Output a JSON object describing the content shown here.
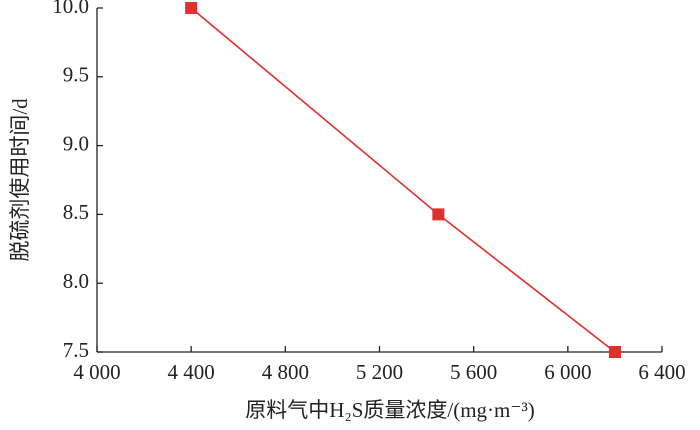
{
  "chart_data": {
    "type": "line",
    "x_label": "原料气中H₂S质量浓度/(mg·m⁻³)",
    "y_label": "脱硫剂使用时间/d",
    "series": [
      {
        "color": "#e0302c",
        "x": [
          4400,
          5450,
          6200
        ],
        "values": [
          10.0,
          8.5,
          7.5
        ]
      }
    ],
    "xlim": [
      4000,
      6400
    ],
    "xticks": [
      {
        "value": 4000,
        "label": "4 000"
      },
      {
        "value": 4400,
        "label": "4 400"
      },
      {
        "value": 4800,
        "label": "4 800"
      },
      {
        "value": 5200,
        "label": "5 200"
      },
      {
        "value": 5600,
        "label": "5 600"
      },
      {
        "value": 6000,
        "label": "6 000"
      },
      {
        "value": 6400,
        "label": "6 400"
      }
    ],
    "ylim": [
      7.5,
      10.0
    ],
    "yticks": [
      7.5,
      {
        "value": 8,
        "label": "8.0"
      },
      8.5,
      {
        "value": 9,
        "label": "9.0"
      },
      9.5,
      {
        "value": 10,
        "label": "10.0"
      }
    ],
    "marker": "square"
  }
}
